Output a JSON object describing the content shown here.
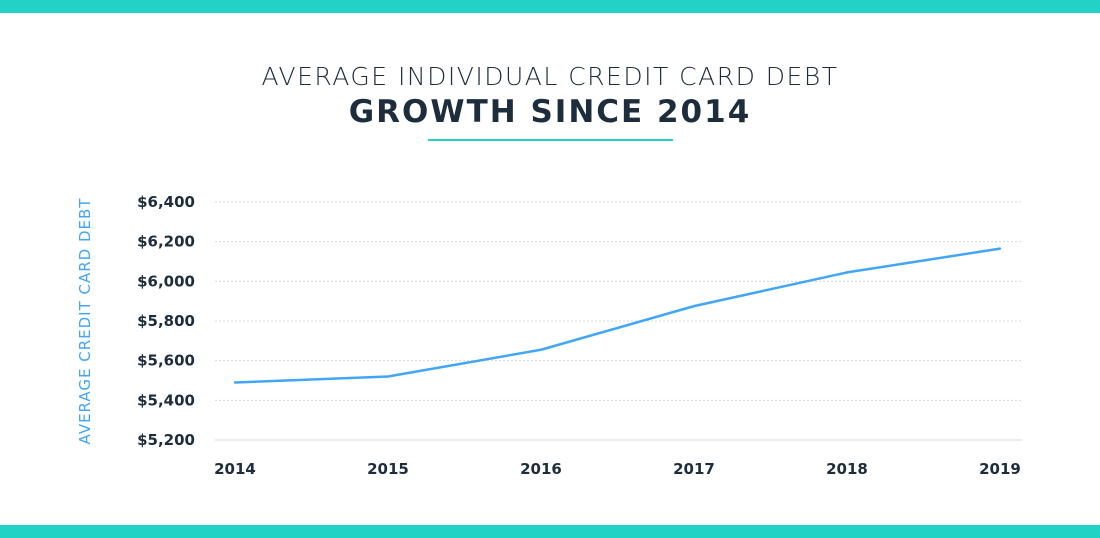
{
  "title_line1": "AVERAGE INDIVIDUAL CREDIT CARD DEBT",
  "title_line2": "GROWTH SINCE 2014",
  "colors": {
    "accent": "#22d3c5",
    "line": "#42a5f5",
    "text": "#1d2d3c",
    "ylabel": "#42a5f5"
  },
  "chart_data": {
    "type": "line",
    "title": "AVERAGE INDIVIDUAL CREDIT CARD DEBT GROWTH SINCE 2014",
    "xlabel": "",
    "ylabel": "AVERAGE CREDIT CARD DEBT",
    "categories": [
      "2014",
      "2015",
      "2016",
      "2017",
      "2018",
      "2019"
    ],
    "values": [
      5490,
      5520,
      5655,
      5875,
      6045,
      6165
    ],
    "ylim": [
      5200,
      6400
    ],
    "yticks": [
      5200,
      5400,
      5600,
      5800,
      6000,
      6200,
      6400
    ],
    "ytick_labels": [
      "$5,200",
      "$5,400",
      "$5,600",
      "$5,800",
      "$6,000",
      "$6,200",
      "$6,400"
    ],
    "grid": true,
    "legend": "none"
  }
}
